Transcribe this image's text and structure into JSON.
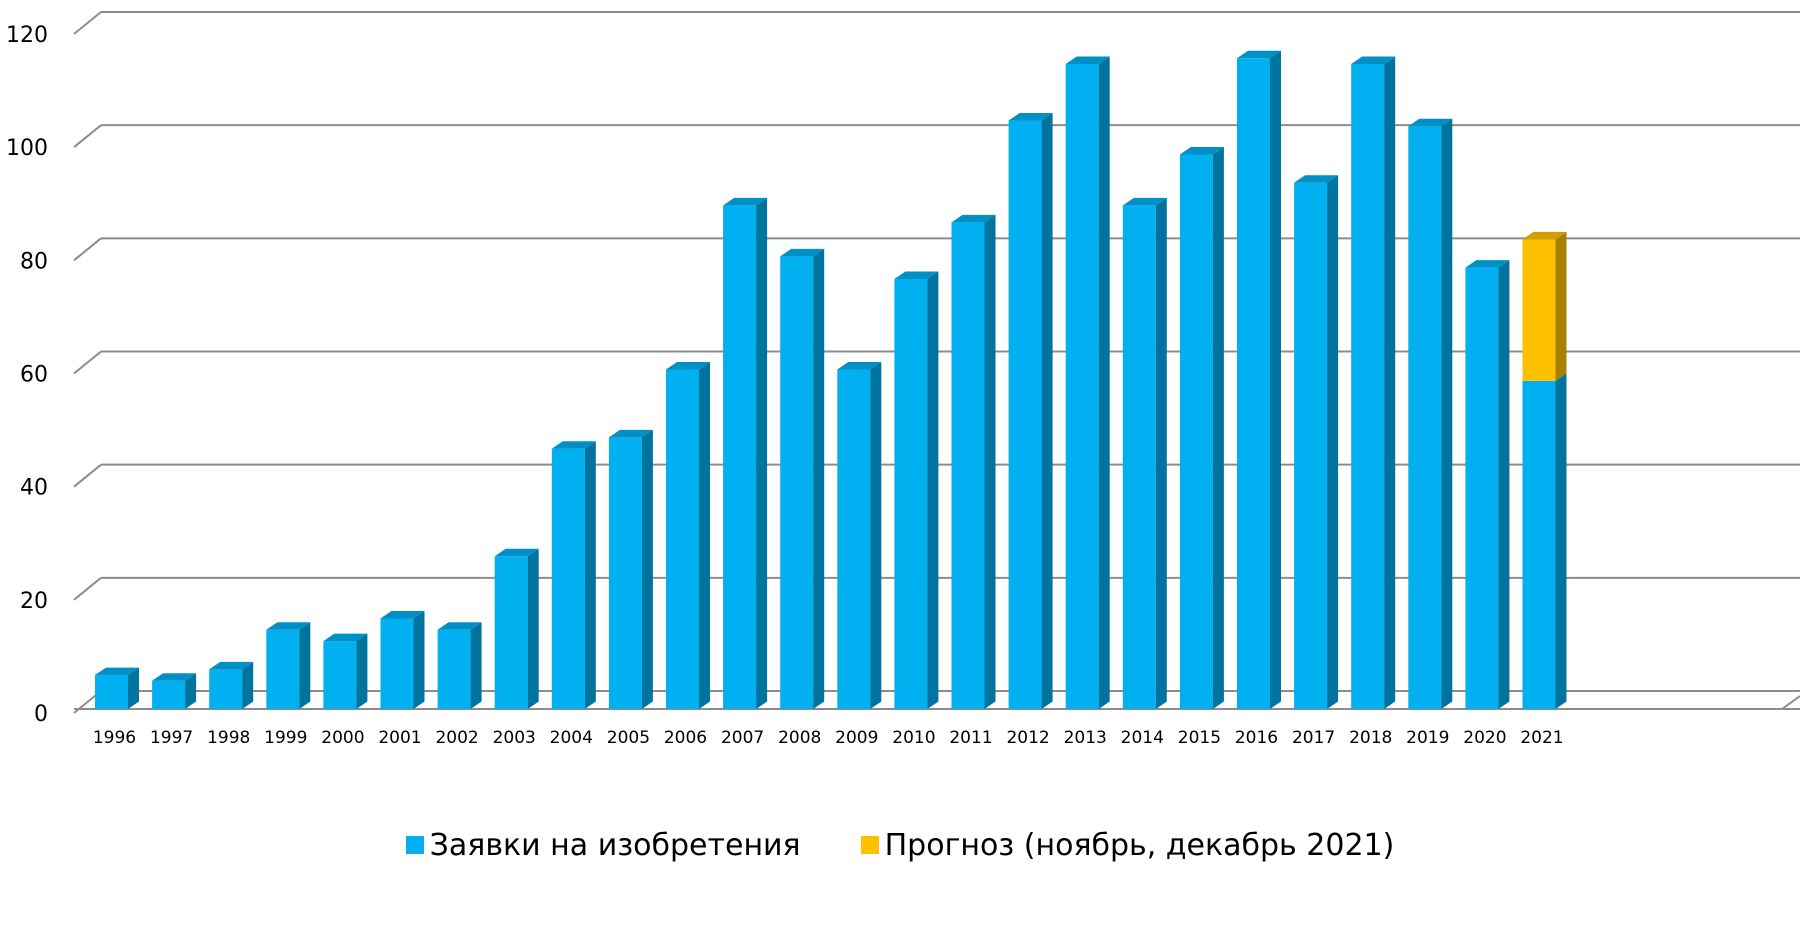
{
  "chart_data": {
    "type": "bar",
    "stacked": true,
    "categories": [
      "1996",
      "1997",
      "1998",
      "1999",
      "2000",
      "2001",
      "2002",
      "2003",
      "2004",
      "2005",
      "2006",
      "2007",
      "2008",
      "2009",
      "2010",
      "2011",
      "2012",
      "2013",
      "2014",
      "2015",
      "2016",
      "2017",
      "2018",
      "2019",
      "2020",
      "2021"
    ],
    "series": [
      {
        "name": "Заявки на изобретения",
        "color": "#00B0F0",
        "values": [
          6,
          5,
          7,
          14,
          12,
          16,
          14,
          27,
          46,
          48,
          60,
          89,
          80,
          60,
          76,
          86,
          104,
          114,
          89,
          98,
          115,
          93,
          114,
          103,
          78,
          58
        ]
      },
      {
        "name": "Прогноз (ноябрь, декабрь 2021)",
        "color": "#FFC000",
        "values": [
          0,
          0,
          0,
          0,
          0,
          0,
          0,
          0,
          0,
          0,
          0,
          0,
          0,
          0,
          0,
          0,
          0,
          0,
          0,
          0,
          0,
          0,
          0,
          0,
          0,
          25
        ]
      }
    ],
    "ylim": [
      0,
      120
    ],
    "yticks": [
      "0",
      "20",
      "40",
      "60",
      "80",
      "100",
      "120"
    ],
    "grid": true,
    "legend_position": "bottom"
  }
}
